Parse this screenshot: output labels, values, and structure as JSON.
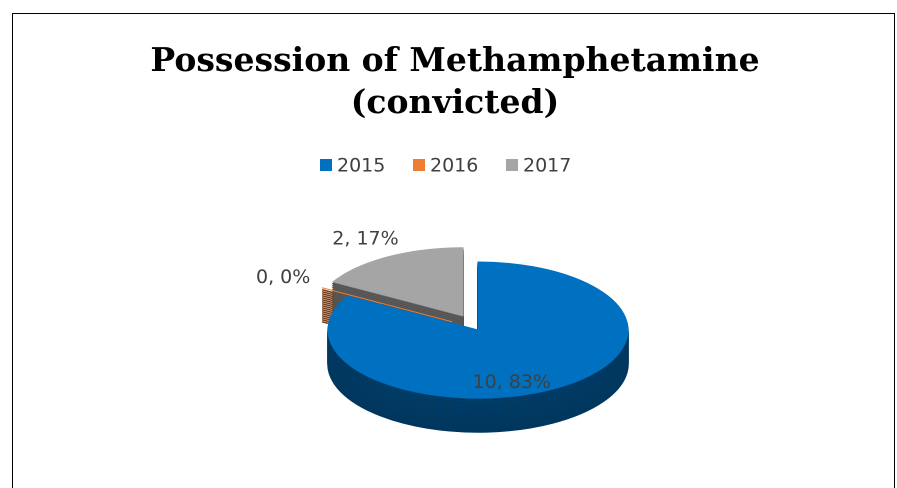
{
  "chart_data": {
    "type": "pie3d",
    "title": [
      "Possession of Methamphetamine",
      "(convicted)"
    ],
    "categories": [
      "2015",
      "2016",
      "2017"
    ],
    "values": [
      10,
      0,
      2
    ],
    "value_labels": [
      "10, 83%",
      "0, 0%",
      "2, 17%"
    ],
    "colors": [
      "#0070c0",
      "#ed7d31",
      "#a5a5a5"
    ],
    "legend": "top"
  }
}
